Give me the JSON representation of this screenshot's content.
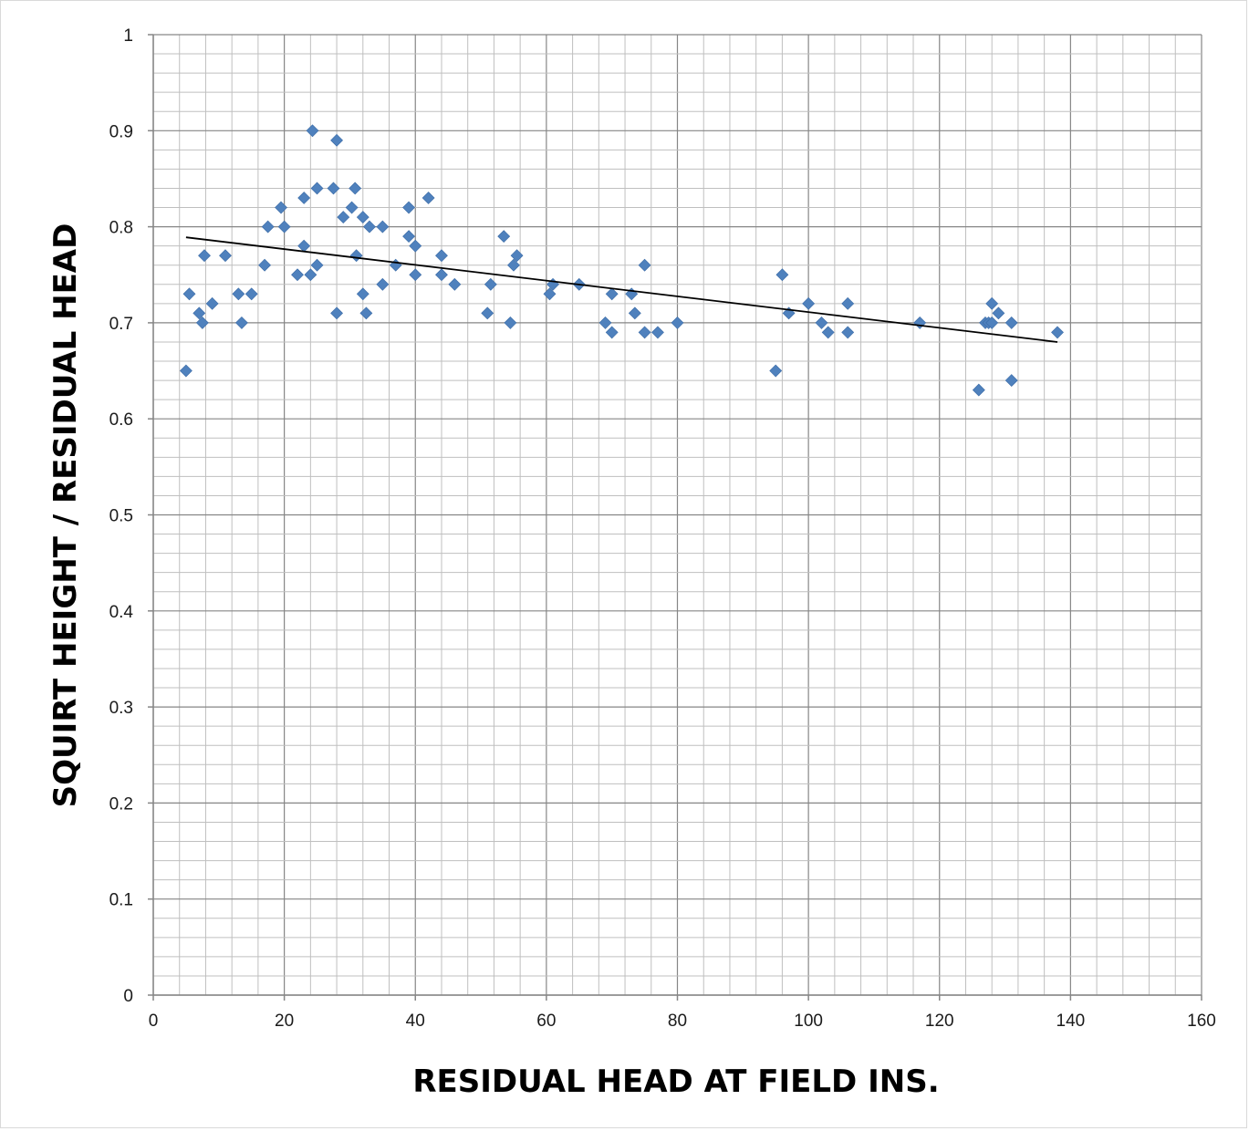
{
  "chart_data": {
    "type": "scatter",
    "title": "",
    "xlabel": "RESIDUAL HEAD AT FIELD INS.",
    "ylabel": "SQUIRT HEIGHT / RESIDUAL HEAD",
    "xlim": [
      0,
      160
    ],
    "ylim": [
      0,
      1
    ],
    "x_ticks": [
      "0",
      "20",
      "40",
      "60",
      "80",
      "100",
      "120",
      "140",
      "160"
    ],
    "y_ticks": [
      "0",
      "0.1",
      "0.2",
      "0.3",
      "0.4",
      "0.5",
      "0.6",
      "0.7",
      "0.8",
      "0.9",
      "1"
    ],
    "grid": "major and minor",
    "marker_color": "#4f81bd",
    "trendline": {
      "type": "linear",
      "color": "#000000",
      "start": [
        5,
        0.789
      ],
      "end": [
        138,
        0.68
      ]
    },
    "series": [
      {
        "points": [
          [
            5,
            0.65
          ],
          [
            5.5,
            0.73
          ],
          [
            7,
            0.71
          ],
          [
            7.5,
            0.7
          ],
          [
            7.8,
            0.77
          ],
          [
            9,
            0.72
          ],
          [
            11,
            0.77
          ],
          [
            13,
            0.73
          ],
          [
            13.5,
            0.7
          ],
          [
            15,
            0.73
          ],
          [
            17,
            0.76
          ],
          [
            17.5,
            0.8
          ],
          [
            19.5,
            0.82
          ],
          [
            20,
            0.8
          ],
          [
            22,
            0.75
          ],
          [
            23,
            0.83
          ],
          [
            23,
            0.78
          ],
          [
            24,
            0.75
          ],
          [
            24.3,
            0.9
          ],
          [
            25,
            0.84
          ],
          [
            25,
            0.76
          ],
          [
            27.5,
            0.84
          ],
          [
            28,
            0.89
          ],
          [
            28,
            0.71
          ],
          [
            29,
            0.81
          ],
          [
            30.3,
            0.82
          ],
          [
            30.8,
            0.84
          ],
          [
            31,
            0.77
          ],
          [
            32,
            0.81
          ],
          [
            32,
            0.73
          ],
          [
            32.5,
            0.71
          ],
          [
            33,
            0.8
          ],
          [
            35,
            0.8
          ],
          [
            35,
            0.74
          ],
          [
            37,
            0.76
          ],
          [
            39,
            0.82
          ],
          [
            39,
            0.79
          ],
          [
            40,
            0.78
          ],
          [
            40,
            0.75
          ],
          [
            42,
            0.83
          ],
          [
            44,
            0.77
          ],
          [
            44,
            0.75
          ],
          [
            46,
            0.74
          ],
          [
            51,
            0.71
          ],
          [
            51.5,
            0.74
          ],
          [
            53.5,
            0.79
          ],
          [
            54.5,
            0.7
          ],
          [
            55,
            0.76
          ],
          [
            55.5,
            0.77
          ],
          [
            60.5,
            0.73
          ],
          [
            61,
            0.74
          ],
          [
            65,
            0.74
          ],
          [
            69,
            0.7
          ],
          [
            70,
            0.73
          ],
          [
            70,
            0.69
          ],
          [
            73,
            0.73
          ],
          [
            73.5,
            0.71
          ],
          [
            75,
            0.76
          ],
          [
            75,
            0.69
          ],
          [
            77,
            0.69
          ],
          [
            80,
            0.7
          ],
          [
            95,
            0.65
          ],
          [
            96,
            0.75
          ],
          [
            97,
            0.71
          ],
          [
            100,
            0.72
          ],
          [
            102,
            0.7
          ],
          [
            103,
            0.69
          ],
          [
            106,
            0.72
          ],
          [
            106,
            0.69
          ],
          [
            117,
            0.7
          ],
          [
            126,
            0.63
          ],
          [
            127,
            0.7
          ],
          [
            127.5,
            0.7
          ],
          [
            128,
            0.72
          ],
          [
            128,
            0.7
          ],
          [
            129,
            0.71
          ],
          [
            131,
            0.7
          ],
          [
            131,
            0.64
          ],
          [
            138,
            0.69
          ]
        ]
      }
    ]
  }
}
